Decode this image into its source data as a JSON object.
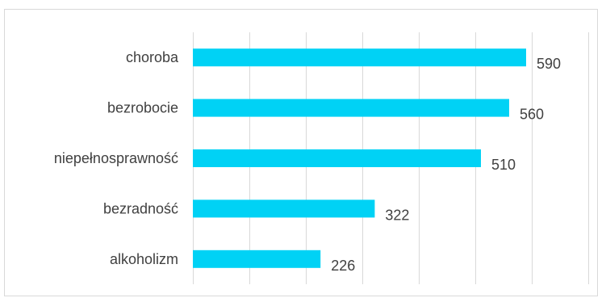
{
  "chart_data": {
    "type": "bar",
    "orientation": "horizontal",
    "categories": [
      "choroba",
      "bezrobocie",
      "niepełnosprawność",
      "bezradność",
      "alkoholizm"
    ],
    "values": [
      590,
      560,
      510,
      322,
      226
    ],
    "data_labels": [
      "590",
      "560",
      "510",
      "322",
      "226"
    ],
    "title": "",
    "xlabel": "",
    "ylabel": "",
    "xlim": [
      0,
      700
    ],
    "grid": "vertical",
    "legend": "none",
    "bar_color": "#00d2f5",
    "grid_color": "#d9d9d9",
    "text_color": "#404040"
  }
}
